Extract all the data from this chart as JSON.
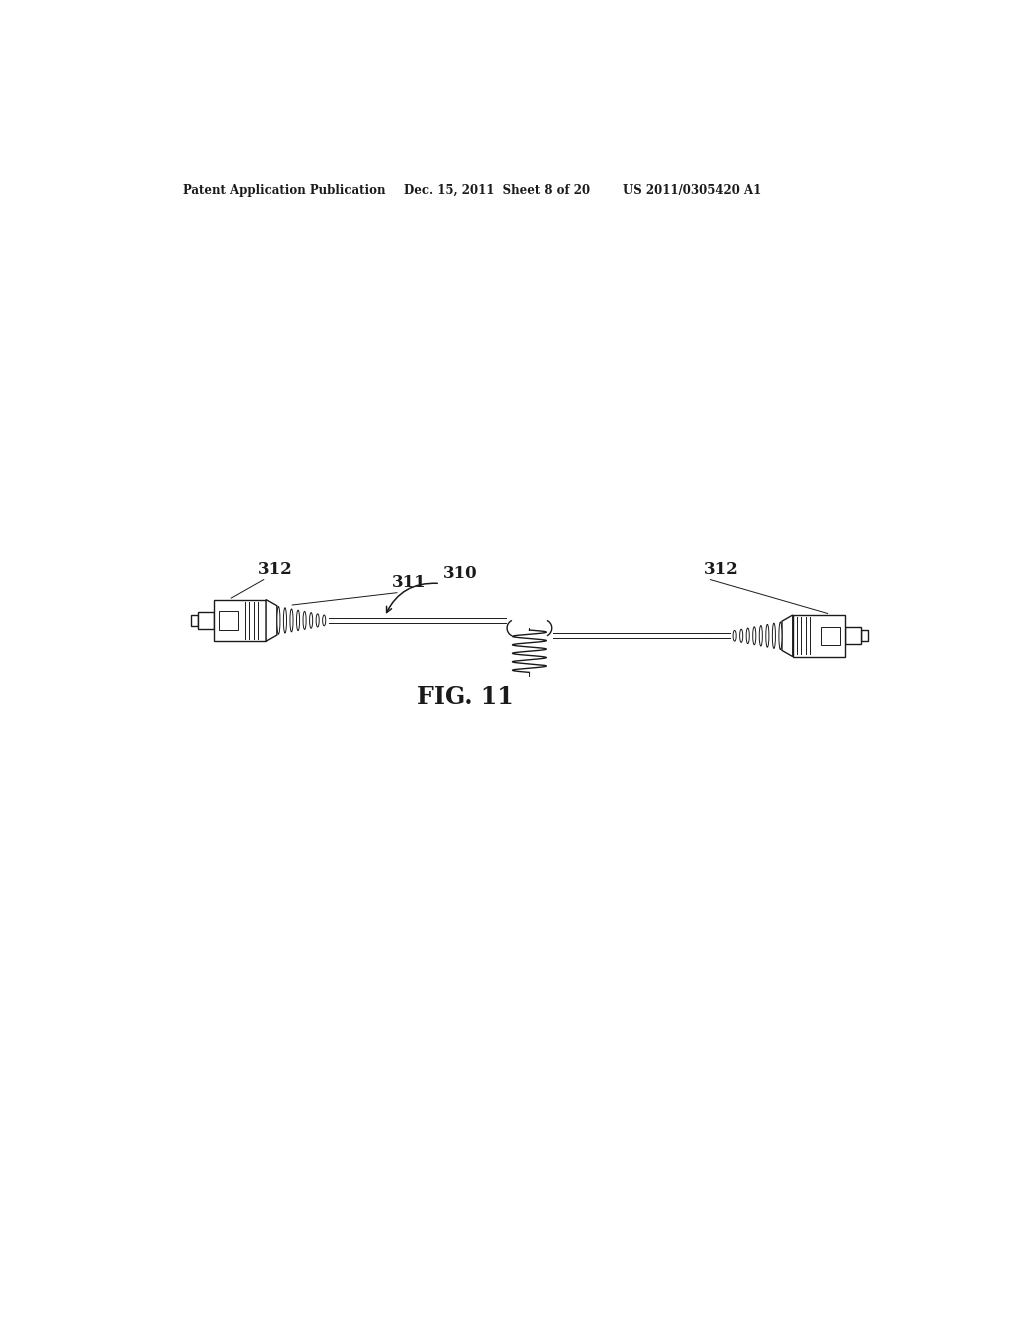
{
  "bg_color": "#ffffff",
  "line_color": "#1a1a1a",
  "header_left": "Patent Application Publication",
  "header_mid": "Dec. 15, 2011  Sheet 8 of 20",
  "header_right": "US 2011/0305420 A1",
  "fig_label": "FIG. 11",
  "label_310": "310",
  "label_311": "311",
  "label_312_left": "312",
  "label_312_right": "312",
  "lw_main": 1.0,
  "lw_thin": 0.7,
  "lw_thick": 1.3
}
